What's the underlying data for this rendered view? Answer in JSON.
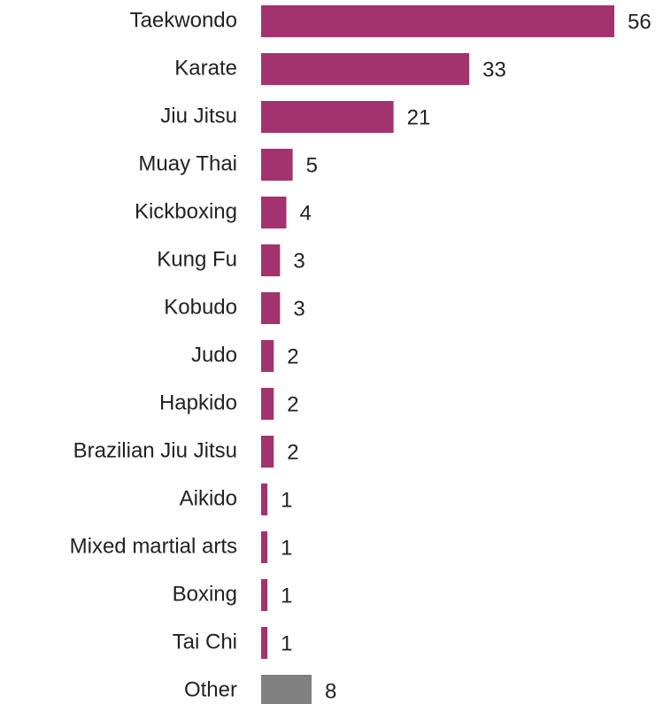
{
  "chart_data": {
    "type": "bar",
    "orientation": "horizontal",
    "categories": [
      "Taekwondo",
      "Karate",
      "Jiu Jitsu",
      "Muay Thai",
      "Kickboxing",
      "Kung Fu",
      "Kobudo",
      "Judo",
      "Hapkido",
      "Brazilian Jiu Jitsu",
      "Aikido",
      "Mixed martial arts",
      "Boxing",
      "Tai Chi",
      "Other"
    ],
    "values": [
      56,
      33,
      21,
      5,
      4,
      3,
      3,
      2,
      2,
      2,
      1,
      1,
      1,
      1,
      8
    ],
    "colors": [
      "#a3336e",
      "#a3336e",
      "#a3336e",
      "#a3336e",
      "#a3336e",
      "#a3336e",
      "#a3336e",
      "#a3336e",
      "#a3336e",
      "#a3336e",
      "#a3336e",
      "#a3336e",
      "#a3336e",
      "#a3336e",
      "#808080"
    ]
  }
}
